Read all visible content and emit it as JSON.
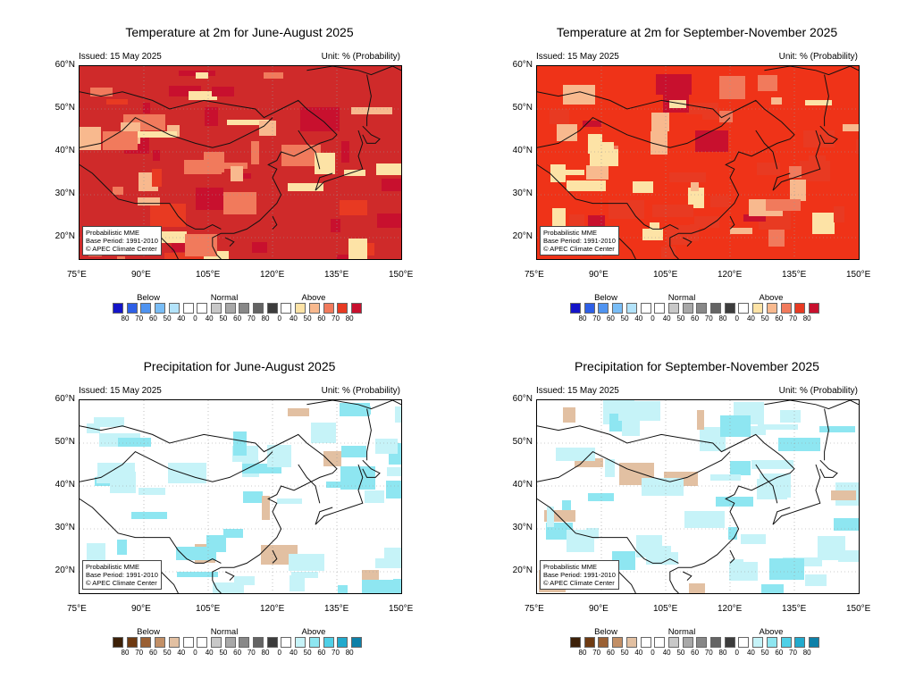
{
  "panels": [
    {
      "title": "Temperature at 2m for June-August 2025",
      "issued": "Issued: 15 May 2025",
      "unit": "Unit: % (Probability)",
      "info": [
        "Probabilistic MME",
        "Base Period: 1991-2010",
        "© APEC Climate Center"
      ],
      "variable": "temperature",
      "season": "JJA",
      "dominant_category": "Above",
      "base_color": "#cf2a2a"
    },
    {
      "title": "Temperature at 2m for September-November 2025",
      "issued": "Issued: 15 May 2025",
      "unit": "Unit: % (Probability)",
      "info": [
        "Probabilistic MME",
        "Base Period: 1991-2010",
        "© APEC Climate Center"
      ],
      "variable": "temperature",
      "season": "SON",
      "dominant_category": "Above",
      "base_color": "#ef3318"
    },
    {
      "title": "Precipitation for June-August 2025",
      "issued": "Issued: 15 May 2025",
      "unit": "Unit: % (Probability)",
      "info": [
        "Probabilistic MME",
        "Base Period: 1991-2010",
        "© APEC Climate Center"
      ],
      "variable": "precipitation",
      "season": "JJA",
      "dominant_category": "Normal",
      "base_color": "#ffffff"
    },
    {
      "title": "Precipitation for September-November 2025",
      "issued": "Issued: 15 May 2025",
      "unit": "Unit: % (Probability)",
      "info": [
        "Probabilistic MME",
        "Base Period: 1991-2010",
        "© APEC Climate Center"
      ],
      "variable": "precipitation",
      "season": "SON",
      "dominant_category": "Normal",
      "base_color": "#ffffff"
    }
  ],
  "axes": {
    "lon_labels": [
      "75°E",
      "90°E",
      "105°E",
      "120°E",
      "135°E",
      "150°E"
    ],
    "lat_labels": [
      "60°N",
      "50°N",
      "40°N",
      "30°N",
      "20°N"
    ],
    "lon_range": [
      75,
      150
    ],
    "lat_range": [
      15,
      60
    ]
  },
  "legend": {
    "groups": [
      "Below",
      "Normal",
      "Above"
    ],
    "numbers": [
      "80",
      "70",
      "60",
      "50",
      "40",
      "0",
      "40",
      "50",
      "60",
      "70",
      "80",
      "0",
      "40",
      "50",
      "60",
      "70",
      "80"
    ],
    "temperature_colors": {
      "below": [
        "#1414c8",
        "#2e5fe6",
        "#4f93f0",
        "#79bdf6",
        "#b3e3fa"
      ],
      "normal": [
        "#ffffff",
        "#ffffff",
        "#c8c8c8",
        "#a8a8a8",
        "#888888",
        "#646464",
        "#3c3c3c"
      ],
      "above": [
        "#ffffff",
        "#fde3a6",
        "#f8b98e",
        "#f17a5c",
        "#e83a22",
        "#c8102e"
      ]
    },
    "precipitation_colors": {
      "below": [
        "#3c2008",
        "#6e3a12",
        "#9a6034",
        "#c28f66",
        "#e2c0a2"
      ],
      "normal": [
        "#ffffff",
        "#ffffff",
        "#c8c8c8",
        "#a8a8a8",
        "#888888",
        "#646464",
        "#3c3c3c"
      ],
      "above": [
        "#ffffff",
        "#c6f3f8",
        "#8ee6f1",
        "#4fd0e7",
        "#22aacd",
        "#0e80a8"
      ]
    }
  }
}
